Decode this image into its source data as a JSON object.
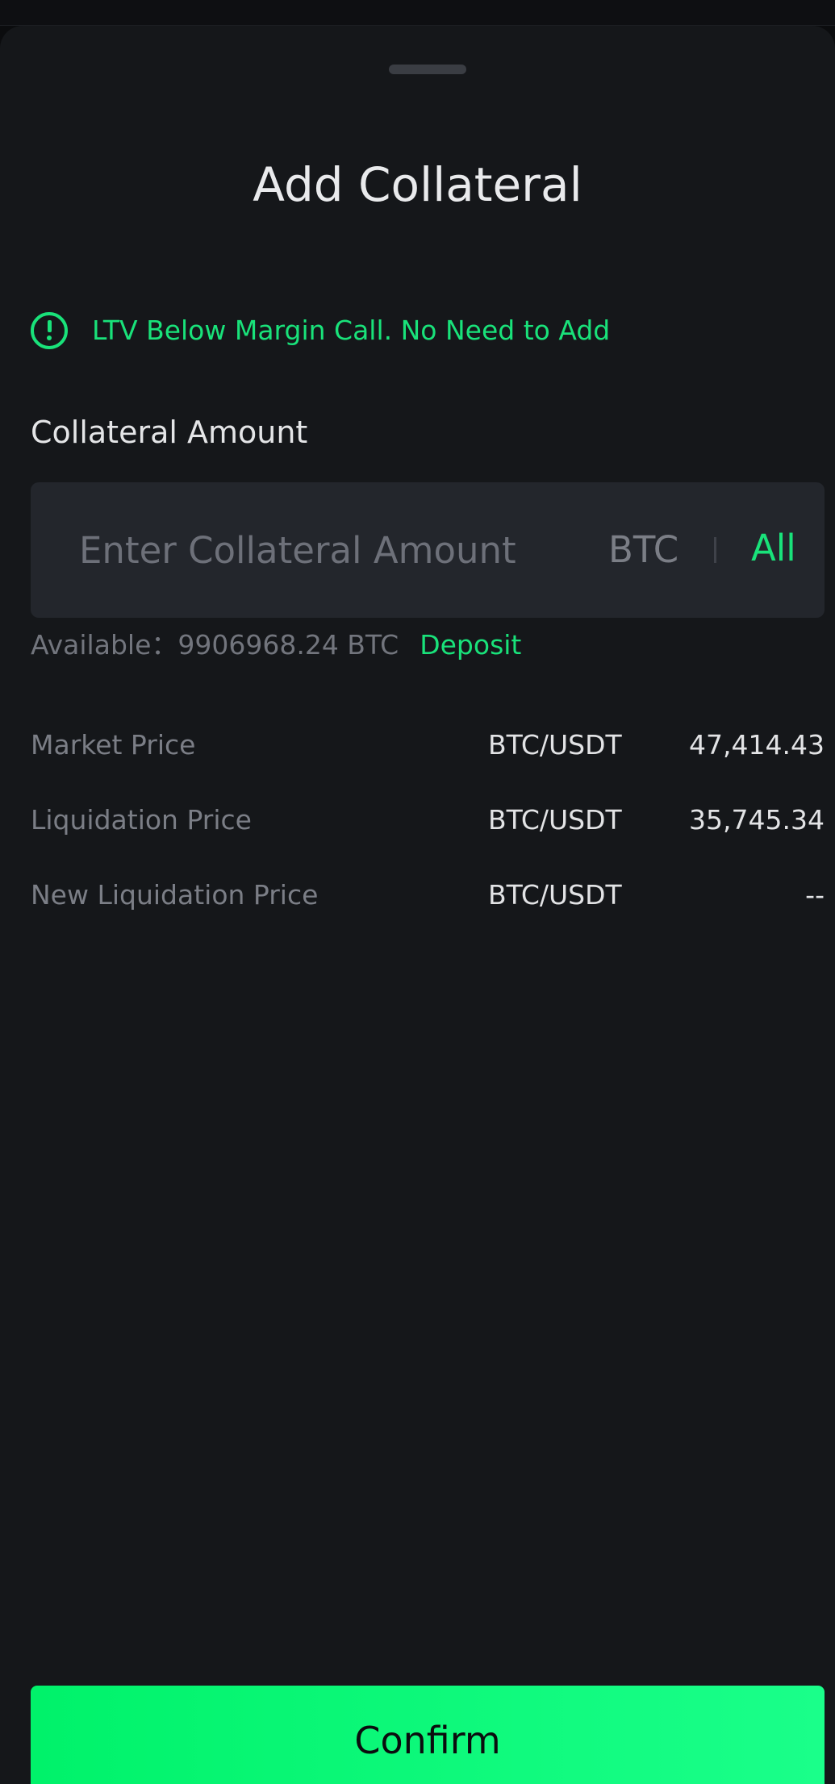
{
  "sheet": {
    "title": "Add Collateral"
  },
  "notice": {
    "icon": "exclamation-circle-icon",
    "text": "LTV Below Margin Call. No Need to Add",
    "color": "#19e27a"
  },
  "collateral": {
    "label": "Collateral Amount",
    "input_value": "",
    "placeholder": "Enter Collateral Amount",
    "unit": "BTC",
    "all_label": "All",
    "available_text": "Available：9906968.24 BTC",
    "deposit_label": "Deposit"
  },
  "info": [
    {
      "label": "Market Price",
      "pair": "BTC/USDT",
      "value": "47,414.43"
    },
    {
      "label": "Liquidation Price",
      "pair": "BTC/USDT",
      "value": "35,745.34"
    },
    {
      "label": "New Liquidation Price",
      "pair": "BTC/USDT",
      "value": "--"
    }
  ],
  "footer": {
    "confirm_label": "Confirm"
  },
  "colors": {
    "accent": "#19e27a",
    "background": "#15171a",
    "input_background": "#23262c"
  }
}
